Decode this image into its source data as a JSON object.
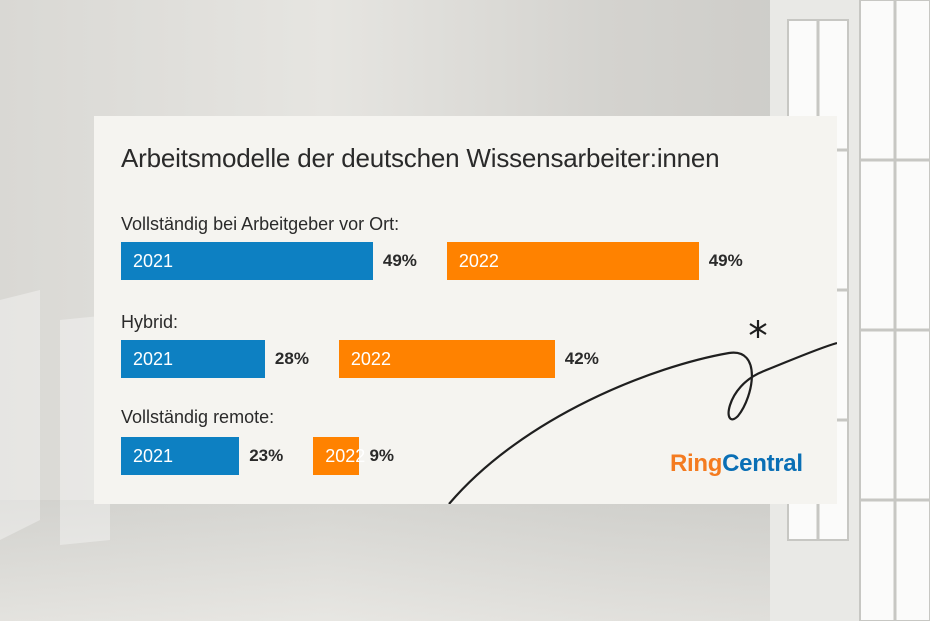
{
  "colors": {
    "y2021": "#0d80c2",
    "y2022": "#ff8200",
    "card": "#f5f4f0",
    "text": "#2a2a2a"
  },
  "brand": {
    "ring": "Ring",
    "central": "Central"
  },
  "chart_data": {
    "type": "bar",
    "title": "Arbeitsmodelle der deutschen Wissensarbeiter:innen",
    "categories": [
      "Vollständig bei Arbeitgeber vor Ort:",
      "Hybrid:",
      "Vollständig remote:"
    ],
    "series": [
      {
        "name": "2021",
        "values": [
          49,
          28,
          23
        ]
      },
      {
        "name": "2022",
        "values": [
          49,
          42,
          9
        ]
      }
    ],
    "value_labels": [
      [
        "49%",
        "49%"
      ],
      [
        "28%",
        "42%"
      ],
      [
        "23%",
        "9%"
      ]
    ],
    "unit": "%"
  }
}
